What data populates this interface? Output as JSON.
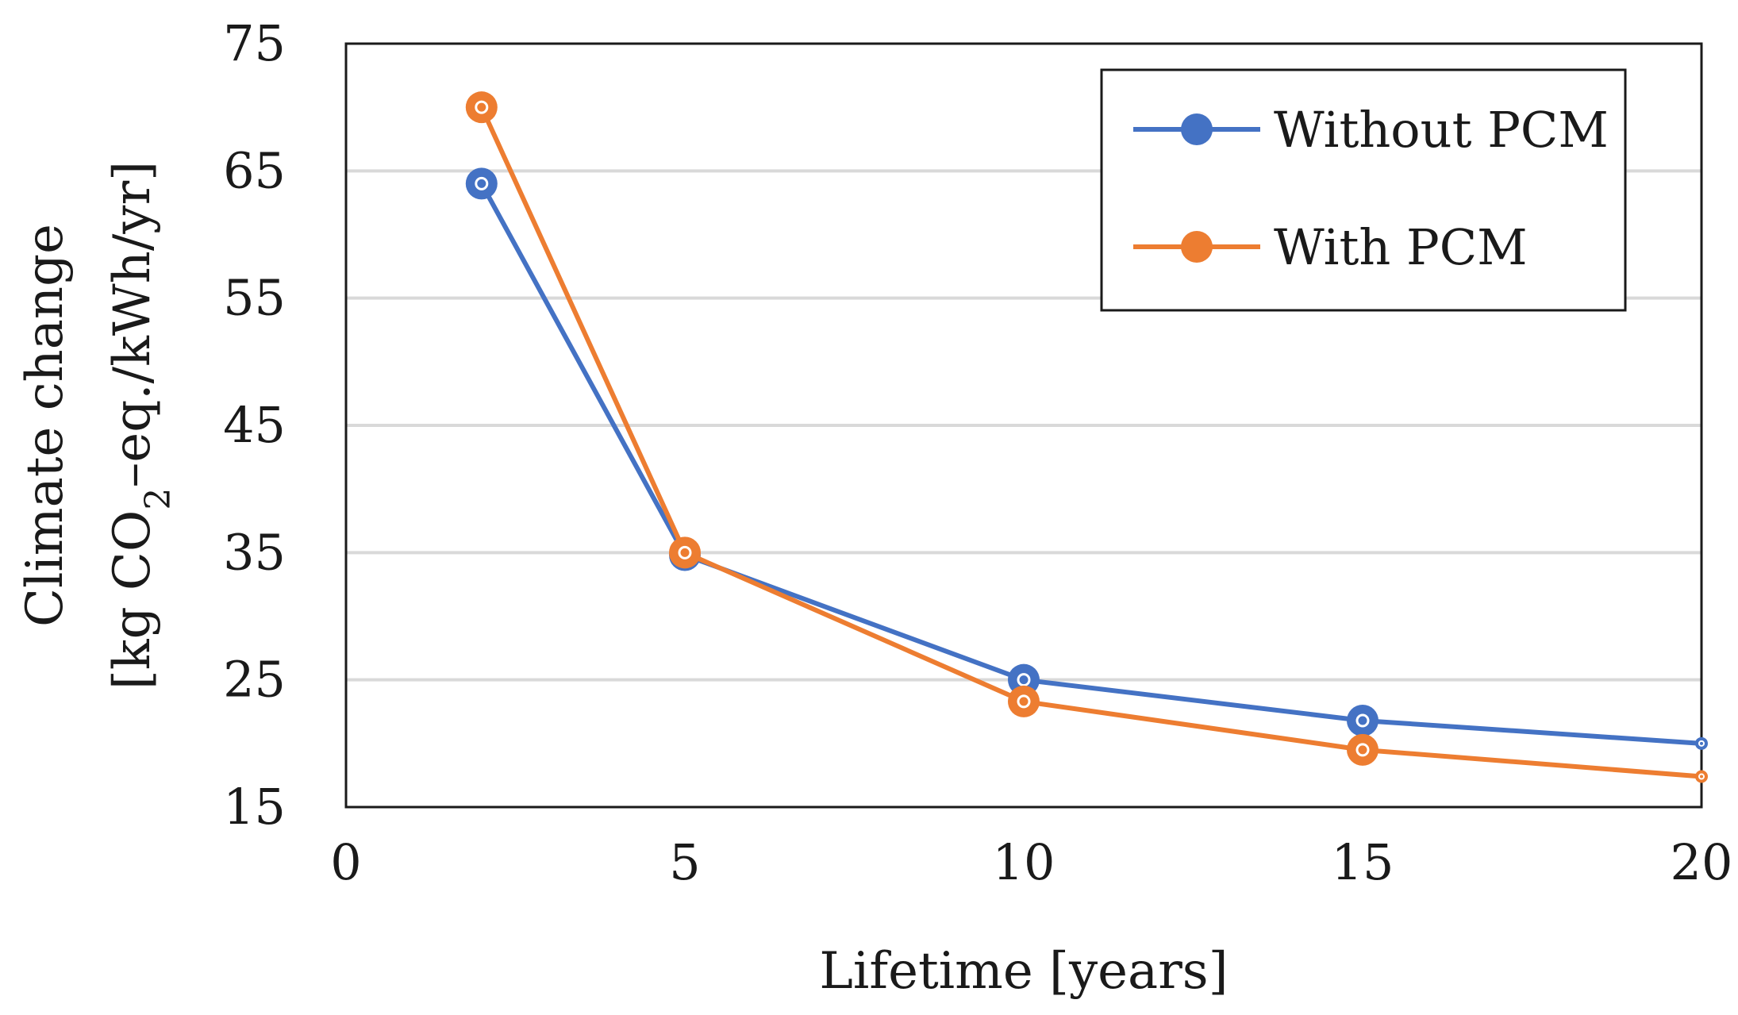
{
  "chart_data": {
    "type": "line",
    "title": "",
    "xlabel": "Lifetime [years]",
    "ylabel_line1": "Climate change",
    "ylabel_line2_prefix": "[kg CO",
    "ylabel_line2_sub": "2",
    "ylabel_line2_suffix": "–eq./kWh/yr]",
    "xlim": [
      0,
      20
    ],
    "ylim": [
      15,
      75
    ],
    "xticks": [
      "0",
      "5",
      "10",
      "15",
      "20"
    ],
    "yticks": [
      "15",
      "25",
      "35",
      "45",
      "55",
      "65",
      "75"
    ],
    "grid": "horizontal",
    "legend_position": "top-right",
    "series": [
      {
        "name": "Without PCM",
        "color": "#4472c4",
        "x": [
          2,
          5,
          10,
          15,
          20
        ],
        "y": [
          64,
          34.8,
          25,
          21.8,
          20
        ]
      },
      {
        "name": "With PCM",
        "color": "#ed7d31",
        "x": [
          2,
          5,
          10,
          15,
          20
        ],
        "y": [
          70,
          35,
          23.3,
          19.5,
          17.4
        ]
      }
    ]
  }
}
